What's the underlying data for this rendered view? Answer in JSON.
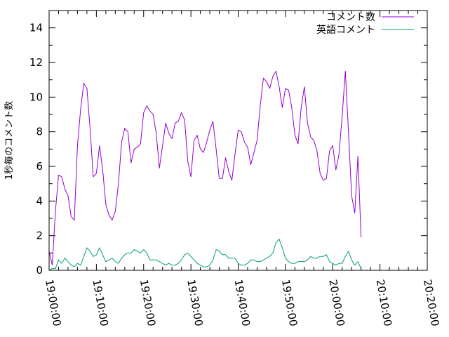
{
  "chart_data": {
    "type": "line",
    "title": "",
    "xlabel": "",
    "ylabel": "1秒毎のコメント数",
    "xlim": [
      "19:00:00",
      "20:20:00"
    ],
    "ylim": [
      0,
      15
    ],
    "x_ticks": [
      "19:00:00",
      "19:10:00",
      "19:20:00",
      "19:30:00",
      "19:40:00",
      "19:50:00",
      "20:00:00",
      "20:10:00",
      "20:20:00"
    ],
    "y_ticks": [
      "0",
      "2",
      "4",
      "6",
      "8",
      "10",
      "12",
      "14"
    ],
    "grid": false,
    "legend": "top-right",
    "x_start": "19:00:00",
    "x_step": "00:00:40",
    "series": [
      {
        "name": "コメント数",
        "color": "#9400d3",
        "values": [
          1.1,
          0.3,
          3.4,
          5.5,
          5.4,
          4.7,
          4.3,
          3.1,
          2.9,
          7.2,
          9.3,
          10.8,
          10.5,
          8.2,
          5.4,
          5.6,
          7.2,
          5.8,
          3.8,
          3.2,
          2.9,
          3.4,
          5.0,
          7.4,
          8.2,
          8.0,
          6.2,
          7.0,
          7.1,
          7.3,
          9.1,
          9.5,
          9.2,
          9.0,
          7.9,
          5.9,
          7.2,
          8.5,
          7.9,
          7.6,
          8.5,
          8.6,
          9.1,
          8.7,
          6.3,
          5.4,
          7.5,
          7.8,
          7.0,
          6.8,
          7.4,
          8.1,
          8.6,
          7.0,
          5.3,
          5.3,
          6.5,
          5.7,
          5.2,
          6.7,
          8.1,
          8.0,
          7.4,
          7.1,
          6.1,
          6.8,
          7.5,
          9.5,
          11.1,
          10.9,
          10.5,
          11.2,
          11.5,
          10.6,
          9.4,
          10.5,
          10.4,
          9.4,
          7.8,
          7.3,
          9.4,
          10.6,
          8.5,
          7.7,
          7.5,
          6.9,
          5.6,
          5.2,
          5.3,
          6.9,
          7.2,
          5.8,
          6.7,
          8.9,
          11.5,
          8.0,
          4.3,
          3.3,
          6.6,
          1.9
        ]
      },
      {
        "name": "英語コメント",
        "color": "#009e73",
        "values": [
          0.0,
          0.1,
          0.1,
          0.6,
          0.4,
          0.7,
          0.5,
          0.3,
          0.2,
          0.4,
          0.3,
          0.8,
          1.3,
          1.1,
          0.8,
          0.9,
          1.3,
          0.9,
          0.5,
          0.6,
          0.7,
          0.5,
          0.4,
          0.7,
          0.9,
          1.0,
          1.0,
          1.2,
          1.1,
          1.0,
          1.2,
          1.0,
          0.6,
          0.6,
          0.6,
          0.5,
          0.4,
          0.3,
          0.4,
          0.3,
          0.3,
          0.4,
          0.6,
          0.9,
          1.0,
          0.8,
          0.6,
          0.4,
          0.3,
          0.2,
          0.2,
          0.3,
          0.6,
          1.2,
          1.1,
          0.9,
          0.9,
          0.7,
          0.7,
          0.7,
          0.4,
          0.3,
          0.3,
          0.4,
          0.6,
          0.6,
          0.5,
          0.5,
          0.6,
          0.7,
          0.8,
          1.0,
          1.6,
          1.8,
          1.3,
          0.7,
          0.5,
          0.4,
          0.4,
          0.5,
          0.5,
          0.5,
          0.6,
          0.8,
          0.7,
          0.7,
          0.8,
          0.8,
          0.9,
          0.5,
          0.4,
          0.3,
          0.4,
          0.4,
          0.8,
          1.1,
          0.6,
          0.3,
          0.5,
          0.1
        ]
      }
    ]
  }
}
